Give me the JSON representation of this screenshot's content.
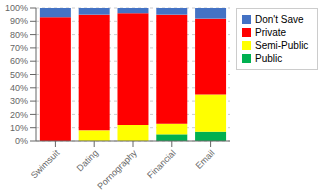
{
  "chart_data": {
    "type": "bar",
    "stacked": true,
    "categories": [
      "Swimsuit",
      "Dating",
      "Pornography",
      "Financial",
      "Email"
    ],
    "series": [
      {
        "name": "Public",
        "color": "#00b050",
        "values": [
          0,
          0,
          0,
          5,
          7
        ]
      },
      {
        "name": "Semi-Public",
        "color": "#ffff00",
        "values": [
          0,
          8,
          12,
          8,
          28
        ]
      },
      {
        "name": "Private",
        "color": "#ff0000",
        "values": [
          93,
          87,
          84,
          82,
          57
        ]
      },
      {
        "name": "Don't Save",
        "color": "#4472c4",
        "values": [
          7,
          5,
          4,
          5,
          8
        ]
      }
    ],
    "ylim": [
      0,
      100
    ],
    "yticks": [
      {
        "value": 0,
        "label": "0%"
      },
      {
        "value": 10,
        "label": "10%"
      },
      {
        "value": 20,
        "label": "20%"
      },
      {
        "value": 30,
        "label": "30%"
      },
      {
        "value": 40,
        "label": "40%"
      },
      {
        "value": 50,
        "label": "50%"
      },
      {
        "value": 60,
        "label": "60%"
      },
      {
        "value": 70,
        "label": "70%"
      },
      {
        "value": 80,
        "label": "80%"
      },
      {
        "value": 90,
        "label": "90%"
      },
      {
        "value": 100,
        "label": "100%"
      }
    ],
    "grid": true,
    "legend": "right"
  }
}
